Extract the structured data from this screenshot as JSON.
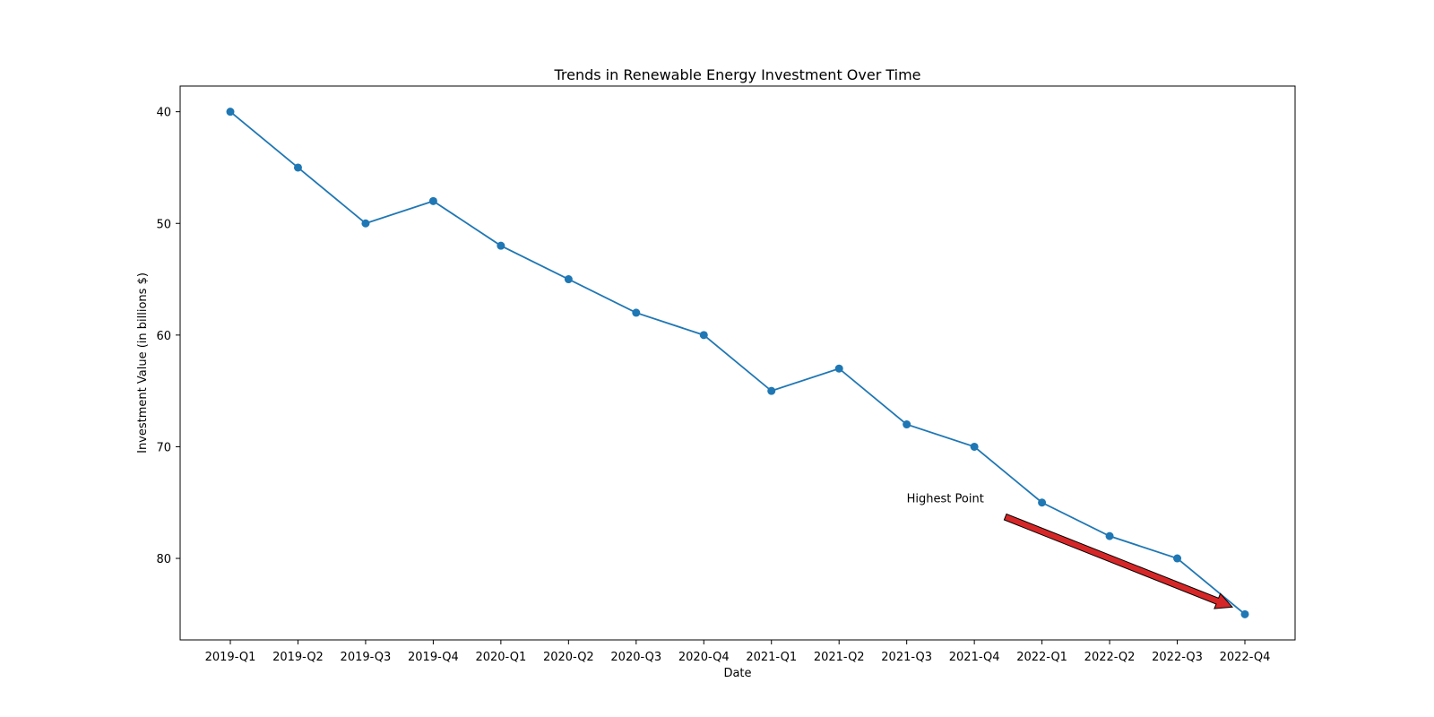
{
  "chart_data": {
    "type": "line",
    "title": "Trends in Renewable Energy Investment Over Time",
    "xlabel": "Date",
    "ylabel": "Investment Value (in billions $)",
    "categories": [
      "2019-Q1",
      "2019-Q2",
      "2019-Q3",
      "2019-Q4",
      "2020-Q1",
      "2020-Q2",
      "2020-Q3",
      "2020-Q4",
      "2021-Q1",
      "2021-Q2",
      "2021-Q3",
      "2021-Q4",
      "2022-Q1",
      "2022-Q2",
      "2022-Q3",
      "2022-Q4"
    ],
    "values": [
      40,
      45,
      50,
      48,
      52,
      55,
      58,
      60,
      65,
      63,
      68,
      70,
      75,
      78,
      80,
      85
    ],
    "ylim": [
      87.3,
      37.7
    ],
    "y_inverted": true,
    "yticks": [
      40,
      50,
      60,
      70,
      80
    ],
    "grid": false,
    "line_color": "#1f77b4",
    "annotation": {
      "text": "Highest Point",
      "target_category": "2022-Q4",
      "target_value": 85,
      "text_category_position": 10,
      "text_value_position": 75,
      "arrow_color": "#d62728"
    }
  }
}
